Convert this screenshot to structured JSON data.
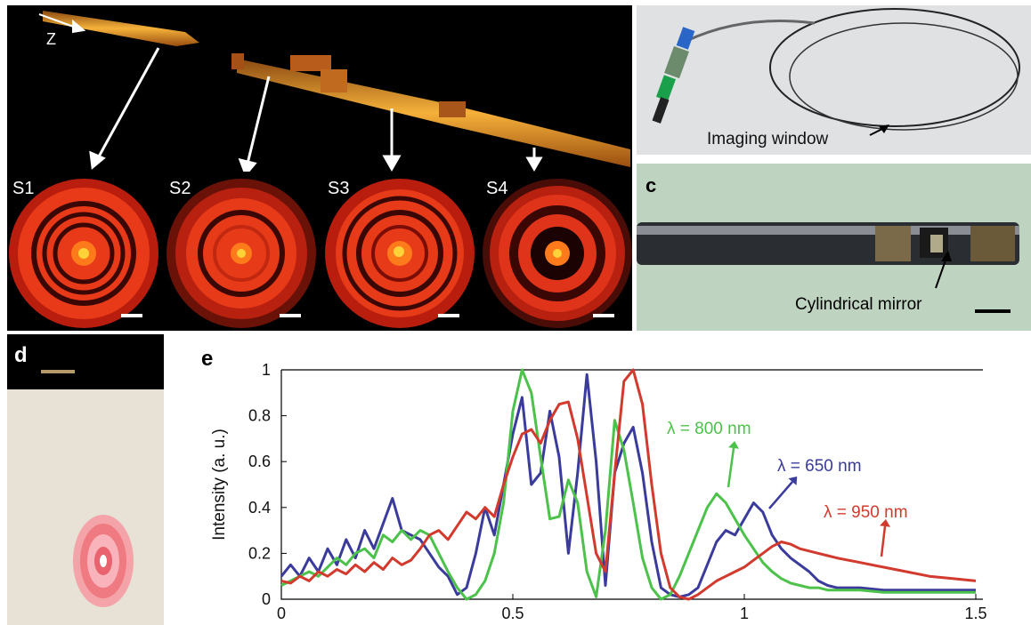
{
  "panel_a": {
    "axis_label": "Z",
    "subpanels": [
      {
        "label": "S1",
        "rings": 3
      },
      {
        "label": "S2",
        "rings": 2
      },
      {
        "label": "S3",
        "rings": 3
      },
      {
        "label": "S4",
        "rings": 2
      }
    ]
  },
  "panel_b": {
    "annotation": "Imaging window"
  },
  "panel_c": {
    "label": "c",
    "annotation": "Cylindrical mirror"
  },
  "panel_d": {
    "label": "d"
  },
  "panel_e": {
    "label": "e"
  },
  "chart_data": {
    "type": "line",
    "title": "",
    "xlabel": "",
    "ylabel": "Intensity (a. u.)",
    "xlim": [
      0,
      1.5
    ],
    "ylim": [
      0,
      1
    ],
    "x_ticks": [
      "0",
      "0.5",
      "1",
      "1.5"
    ],
    "y_ticks": [
      "0",
      "0.2",
      "0.4",
      "0.6",
      "0.8",
      "1"
    ],
    "grid": false,
    "series": [
      {
        "name": "λ = 650 nm",
        "color": "#3b3b9c",
        "x": [
          0,
          0.02,
          0.04,
          0.06,
          0.08,
          0.1,
          0.12,
          0.14,
          0.16,
          0.18,
          0.2,
          0.22,
          0.24,
          0.26,
          0.28,
          0.3,
          0.32,
          0.34,
          0.36,
          0.38,
          0.4,
          0.42,
          0.44,
          0.46,
          0.48,
          0.5,
          0.52,
          0.54,
          0.56,
          0.58,
          0.6,
          0.62,
          0.64,
          0.66,
          0.68,
          0.7,
          0.72,
          0.74,
          0.76,
          0.78,
          0.8,
          0.82,
          0.84,
          0.86,
          0.88,
          0.9,
          0.92,
          0.94,
          0.96,
          0.98,
          1.0,
          1.02,
          1.04,
          1.06,
          1.08,
          1.1,
          1.12,
          1.14,
          1.16,
          1.18,
          1.2,
          1.25,
          1.3,
          1.35,
          1.4,
          1.45,
          1.5
        ],
        "values": [
          0.1,
          0.15,
          0.1,
          0.18,
          0.12,
          0.22,
          0.15,
          0.26,
          0.18,
          0.3,
          0.22,
          0.33,
          0.44,
          0.3,
          0.28,
          0.26,
          0.2,
          0.14,
          0.1,
          0.02,
          0.05,
          0.2,
          0.4,
          0.28,
          0.5,
          0.72,
          0.88,
          0.5,
          0.55,
          0.82,
          0.62,
          0.2,
          0.55,
          0.98,
          0.6,
          0.06,
          0.55,
          0.68,
          0.75,
          0.55,
          0.25,
          0.05,
          0.02,
          0.01,
          0.02,
          0.05,
          0.15,
          0.25,
          0.3,
          0.28,
          0.35,
          0.42,
          0.38,
          0.28,
          0.22,
          0.18,
          0.15,
          0.12,
          0.08,
          0.06,
          0.05,
          0.05,
          0.04,
          0.04,
          0.04,
          0.04,
          0.04
        ]
      },
      {
        "name": "λ = 800 nm",
        "color": "#4cc24a",
        "x": [
          0,
          0.02,
          0.04,
          0.06,
          0.08,
          0.1,
          0.12,
          0.14,
          0.16,
          0.18,
          0.2,
          0.22,
          0.24,
          0.26,
          0.28,
          0.3,
          0.32,
          0.34,
          0.36,
          0.38,
          0.4,
          0.42,
          0.44,
          0.46,
          0.48,
          0.5,
          0.52,
          0.54,
          0.56,
          0.58,
          0.6,
          0.62,
          0.64,
          0.66,
          0.68,
          0.7,
          0.72,
          0.74,
          0.76,
          0.78,
          0.8,
          0.82,
          0.84,
          0.86,
          0.88,
          0.9,
          0.92,
          0.94,
          0.96,
          0.98,
          1.0,
          1.02,
          1.04,
          1.06,
          1.08,
          1.1,
          1.12,
          1.14,
          1.16,
          1.18,
          1.2,
          1.25,
          1.3,
          1.35,
          1.4,
          1.45,
          1.5
        ],
        "values": [
          0.06,
          0.08,
          0.1,
          0.12,
          0.1,
          0.14,
          0.18,
          0.15,
          0.2,
          0.22,
          0.18,
          0.28,
          0.25,
          0.3,
          0.26,
          0.3,
          0.28,
          0.2,
          0.12,
          0.05,
          0.0,
          0.02,
          0.08,
          0.2,
          0.42,
          0.82,
          1.0,
          0.9,
          0.62,
          0.35,
          0.36,
          0.52,
          0.42,
          0.12,
          0.01,
          0.3,
          0.78,
          0.65,
          0.42,
          0.18,
          0.05,
          0.0,
          0.02,
          0.1,
          0.2,
          0.3,
          0.4,
          0.46,
          0.42,
          0.35,
          0.28,
          0.22,
          0.16,
          0.12,
          0.09,
          0.07,
          0.06,
          0.05,
          0.05,
          0.04,
          0.04,
          0.04,
          0.03,
          0.03,
          0.03,
          0.03,
          0.03
        ]
      },
      {
        "name": "λ = 950 nm",
        "color": "#d23a2e",
        "x": [
          0,
          0.02,
          0.04,
          0.06,
          0.08,
          0.1,
          0.12,
          0.14,
          0.16,
          0.18,
          0.2,
          0.22,
          0.24,
          0.26,
          0.28,
          0.3,
          0.32,
          0.34,
          0.36,
          0.38,
          0.4,
          0.42,
          0.44,
          0.46,
          0.48,
          0.5,
          0.52,
          0.54,
          0.56,
          0.58,
          0.6,
          0.62,
          0.64,
          0.66,
          0.68,
          0.7,
          0.72,
          0.74,
          0.76,
          0.78,
          0.8,
          0.82,
          0.84,
          0.86,
          0.88,
          0.9,
          0.92,
          0.94,
          0.96,
          0.98,
          1.0,
          1.02,
          1.04,
          1.06,
          1.08,
          1.1,
          1.12,
          1.14,
          1.16,
          1.18,
          1.2,
          1.25,
          1.3,
          1.35,
          1.4,
          1.45,
          1.5
        ],
        "values": [
          0.08,
          0.07,
          0.1,
          0.08,
          0.12,
          0.1,
          0.13,
          0.11,
          0.15,
          0.12,
          0.16,
          0.13,
          0.18,
          0.15,
          0.17,
          0.22,
          0.28,
          0.3,
          0.26,
          0.32,
          0.38,
          0.35,
          0.4,
          0.36,
          0.5,
          0.62,
          0.72,
          0.74,
          0.68,
          0.78,
          0.85,
          0.86,
          0.7,
          0.45,
          0.2,
          0.12,
          0.55,
          0.95,
          1.0,
          0.85,
          0.5,
          0.2,
          0.05,
          0.01,
          0.0,
          0.02,
          0.05,
          0.08,
          0.1,
          0.12,
          0.14,
          0.17,
          0.2,
          0.23,
          0.25,
          0.24,
          0.22,
          0.21,
          0.2,
          0.19,
          0.18,
          0.16,
          0.14,
          0.12,
          0.1,
          0.09,
          0.08
        ]
      }
    ],
    "annotations": [
      {
        "series": "λ = 800 nm",
        "text": "λ = 800 nm"
      },
      {
        "series": "λ = 650 nm",
        "text": "λ = 650 nm"
      },
      {
        "series": "λ = 950 nm",
        "text": "λ = 950 nm"
      }
    ]
  }
}
